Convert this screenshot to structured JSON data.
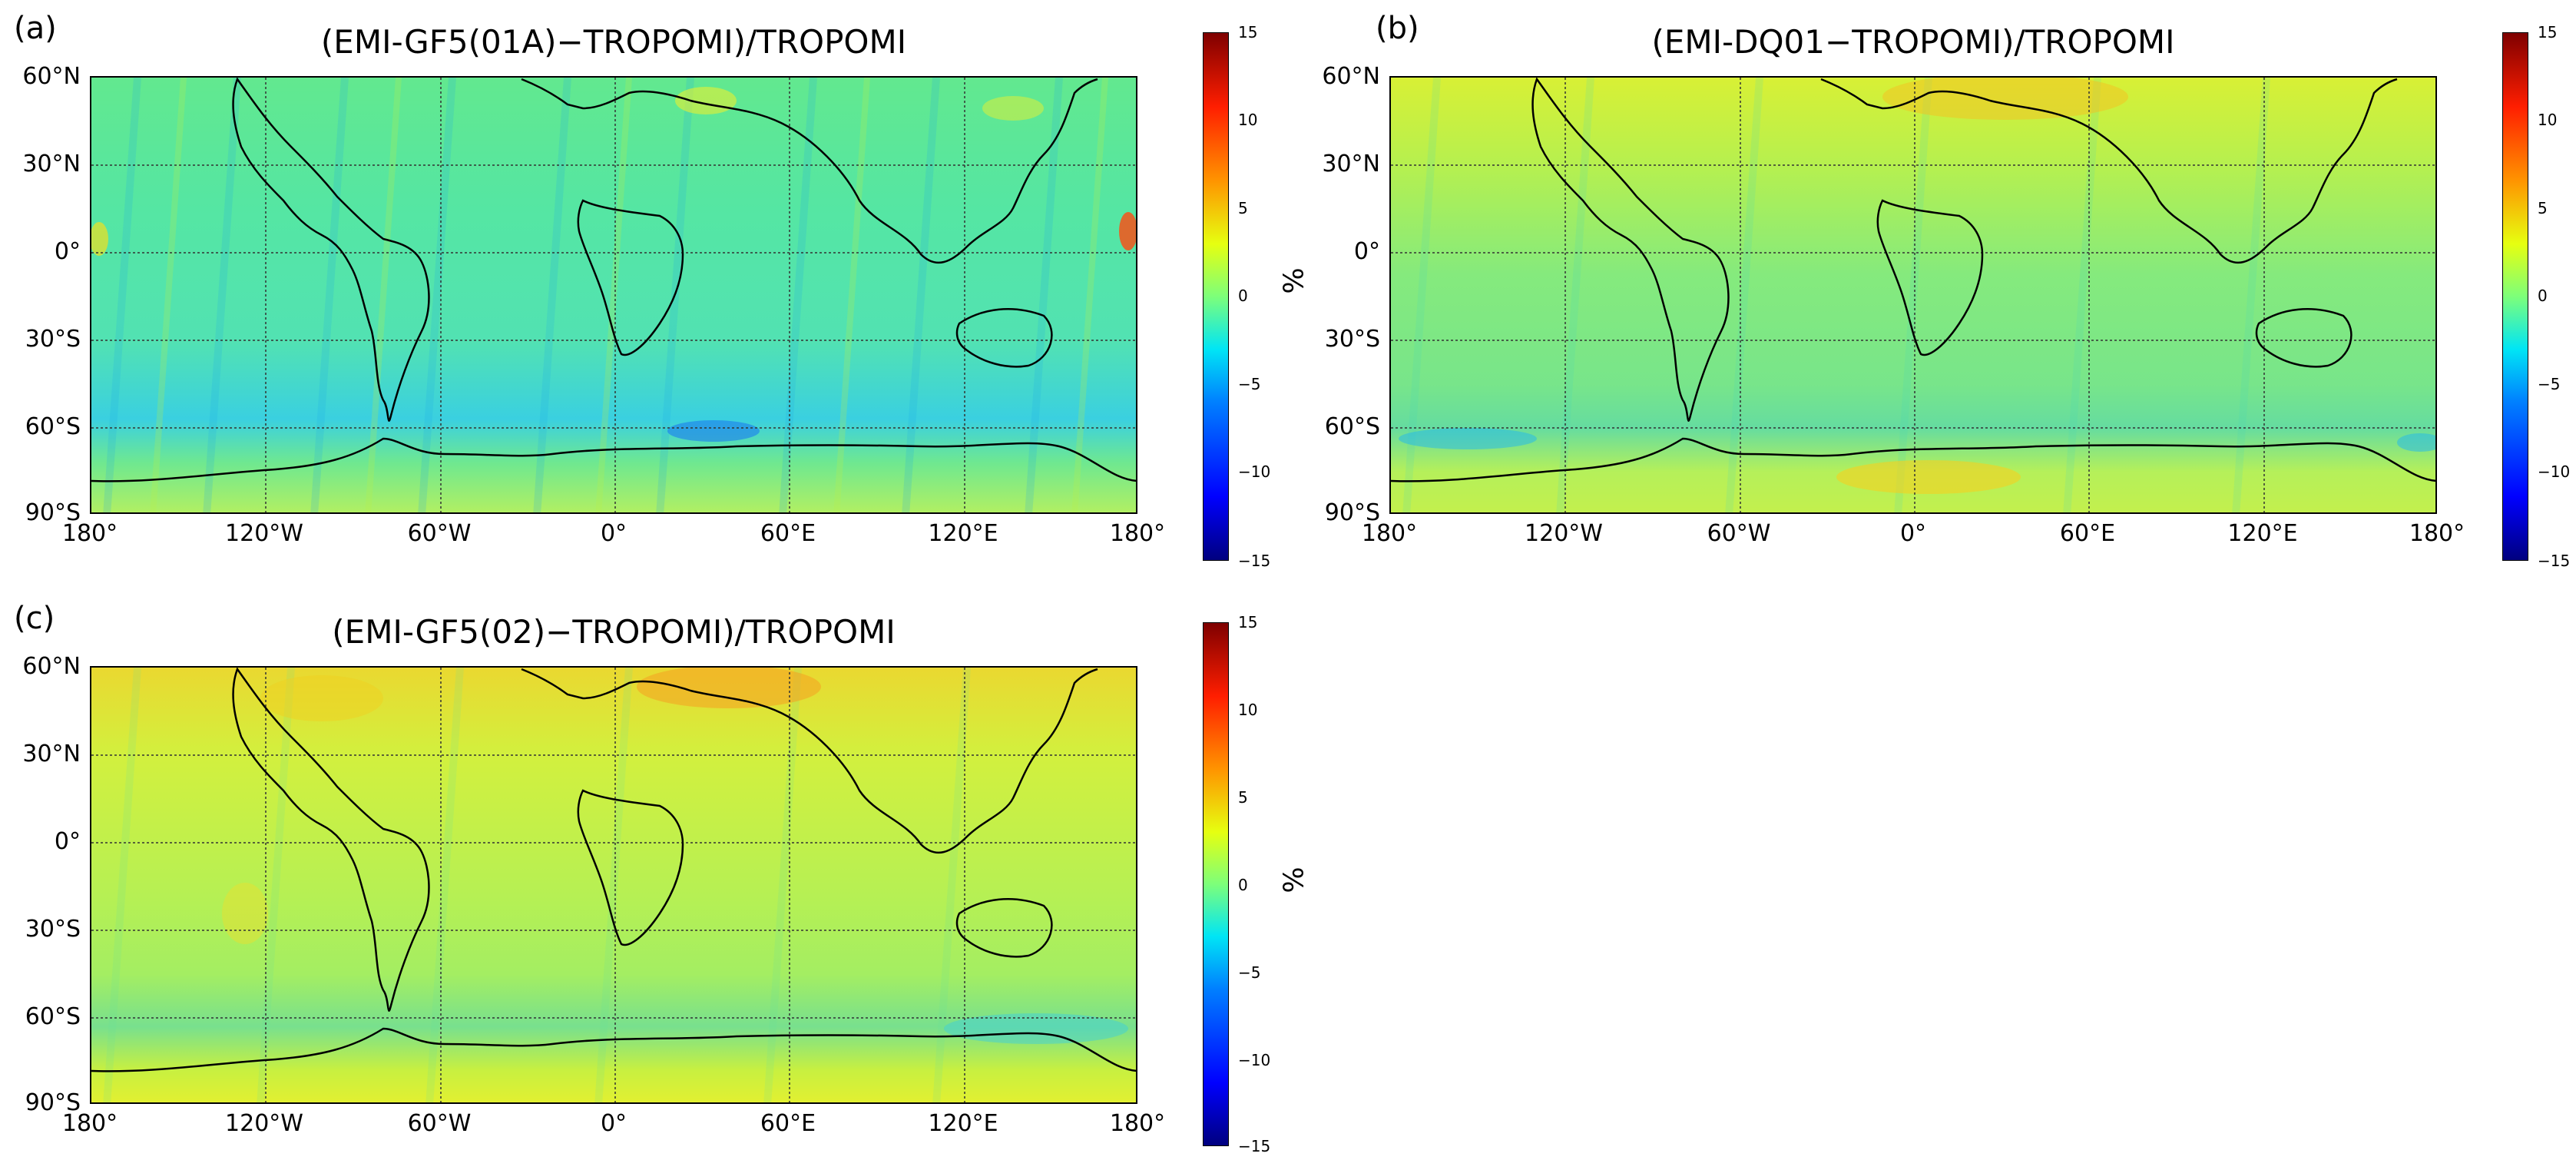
{
  "panels": [
    {
      "label": "(a)",
      "title": "(EMI-GF5(01A)−TROPOMI)/TROPOMI"
    },
    {
      "label": "(b)",
      "title": "(EMI-DQ01−TROPOMI)/TROPOMI"
    },
    {
      "label": "(c)",
      "title": "(EMI-GF5(02)−TROPOMI)/TROPOMI"
    }
  ],
  "axes": {
    "lat_labels": [
      "60°N",
      "30°N",
      "0°",
      "30°S",
      "60°S",
      "90°S"
    ],
    "lon_labels": [
      "180°",
      "120°W",
      "60°W",
      "0°",
      "60°E",
      "120°E",
      "180°"
    ]
  },
  "colorbar": {
    "unit": "%",
    "ticks": [
      "15",
      "10",
      "5",
      "0",
      "−5",
      "−10",
      "−15"
    ],
    "range": [
      -15,
      15
    ],
    "colormap": "jet"
  },
  "colors": {
    "land_line": "#000000",
    "grid_line": "#333333",
    "panel_a_base": "#4de6a0",
    "panel_b_base": "#a8f25a",
    "panel_c_base": "#c8f045"
  }
}
